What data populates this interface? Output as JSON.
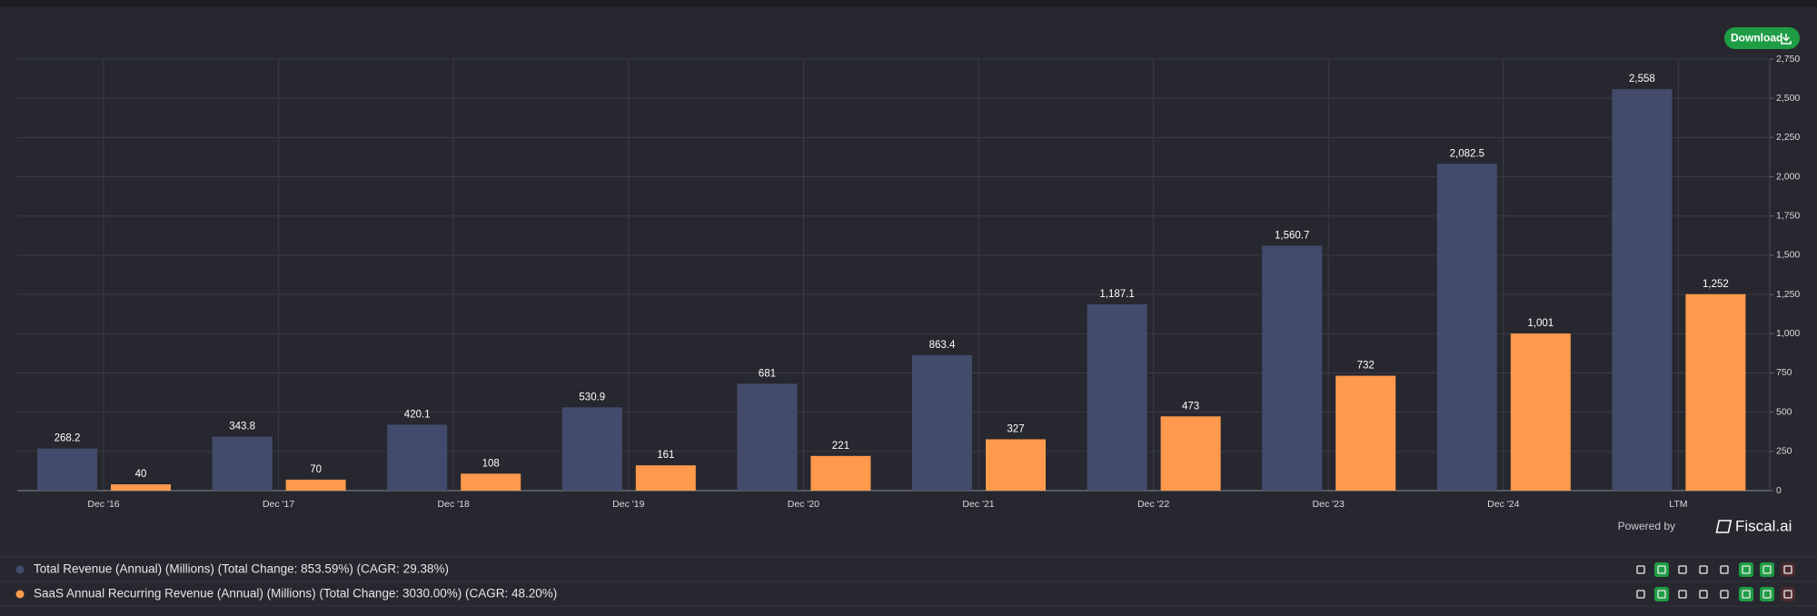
{
  "chart_data": {
    "type": "bar",
    "categories": [
      "Dec '16",
      "Dec '17",
      "Dec '18",
      "Dec '19",
      "Dec '20",
      "Dec '21",
      "Dec '22",
      "Dec '23",
      "Dec '24",
      "LTM"
    ],
    "series": [
      {
        "name": "Total Revenue (Annual) (Millions) (Total Change: 853.59%) (CAGR: 29.38%)",
        "color": "#434b6c",
        "values": [
          268.2,
          343.8,
          420.1,
          530.9,
          681,
          863.4,
          1187.1,
          1560.7,
          2082.5,
          2558
        ],
        "value_labels": [
          "268.2",
          "343.8",
          "420.1",
          "530.9",
          "681",
          "863.4",
          "1,187.1",
          "1,560.7",
          "2,082.5",
          "2,558"
        ]
      },
      {
        "name": "SaaS Annual Recurring Revenue (Annual) (Millions) (Total Change: 3030.00%) (CAGR: 48.20%)",
        "color": "#ff9a4c",
        "values": [
          40,
          70,
          108,
          161,
          221,
          327,
          473,
          732,
          1001,
          1252
        ],
        "value_labels": [
          "40",
          "70",
          "108",
          "161",
          "221",
          "327",
          "473",
          "732",
          "1,001",
          "1,252"
        ]
      }
    ],
    "ylim": [
      0,
      2750
    ],
    "yticks": [
      0,
      250,
      500,
      750,
      {
        "value": 1000,
        "label": "1,000"
      },
      {
        "value": 1250,
        "label": "1,250"
      },
      {
        "value": 1500,
        "label": "1,500"
      },
      {
        "value": 1750,
        "label": "1,750"
      },
      {
        "value": 2000,
        "label": "2,000"
      },
      {
        "value": 2250,
        "label": "2,250"
      },
      {
        "value": 2500,
        "label": "2,500"
      },
      {
        "value": 2750,
        "label": "2,750"
      }
    ],
    "grid": true,
    "y_axis_side": "right"
  },
  "ui": {
    "download_button": "Download",
    "powered_by": "Powered by",
    "brand": "Fiscal.ai"
  }
}
